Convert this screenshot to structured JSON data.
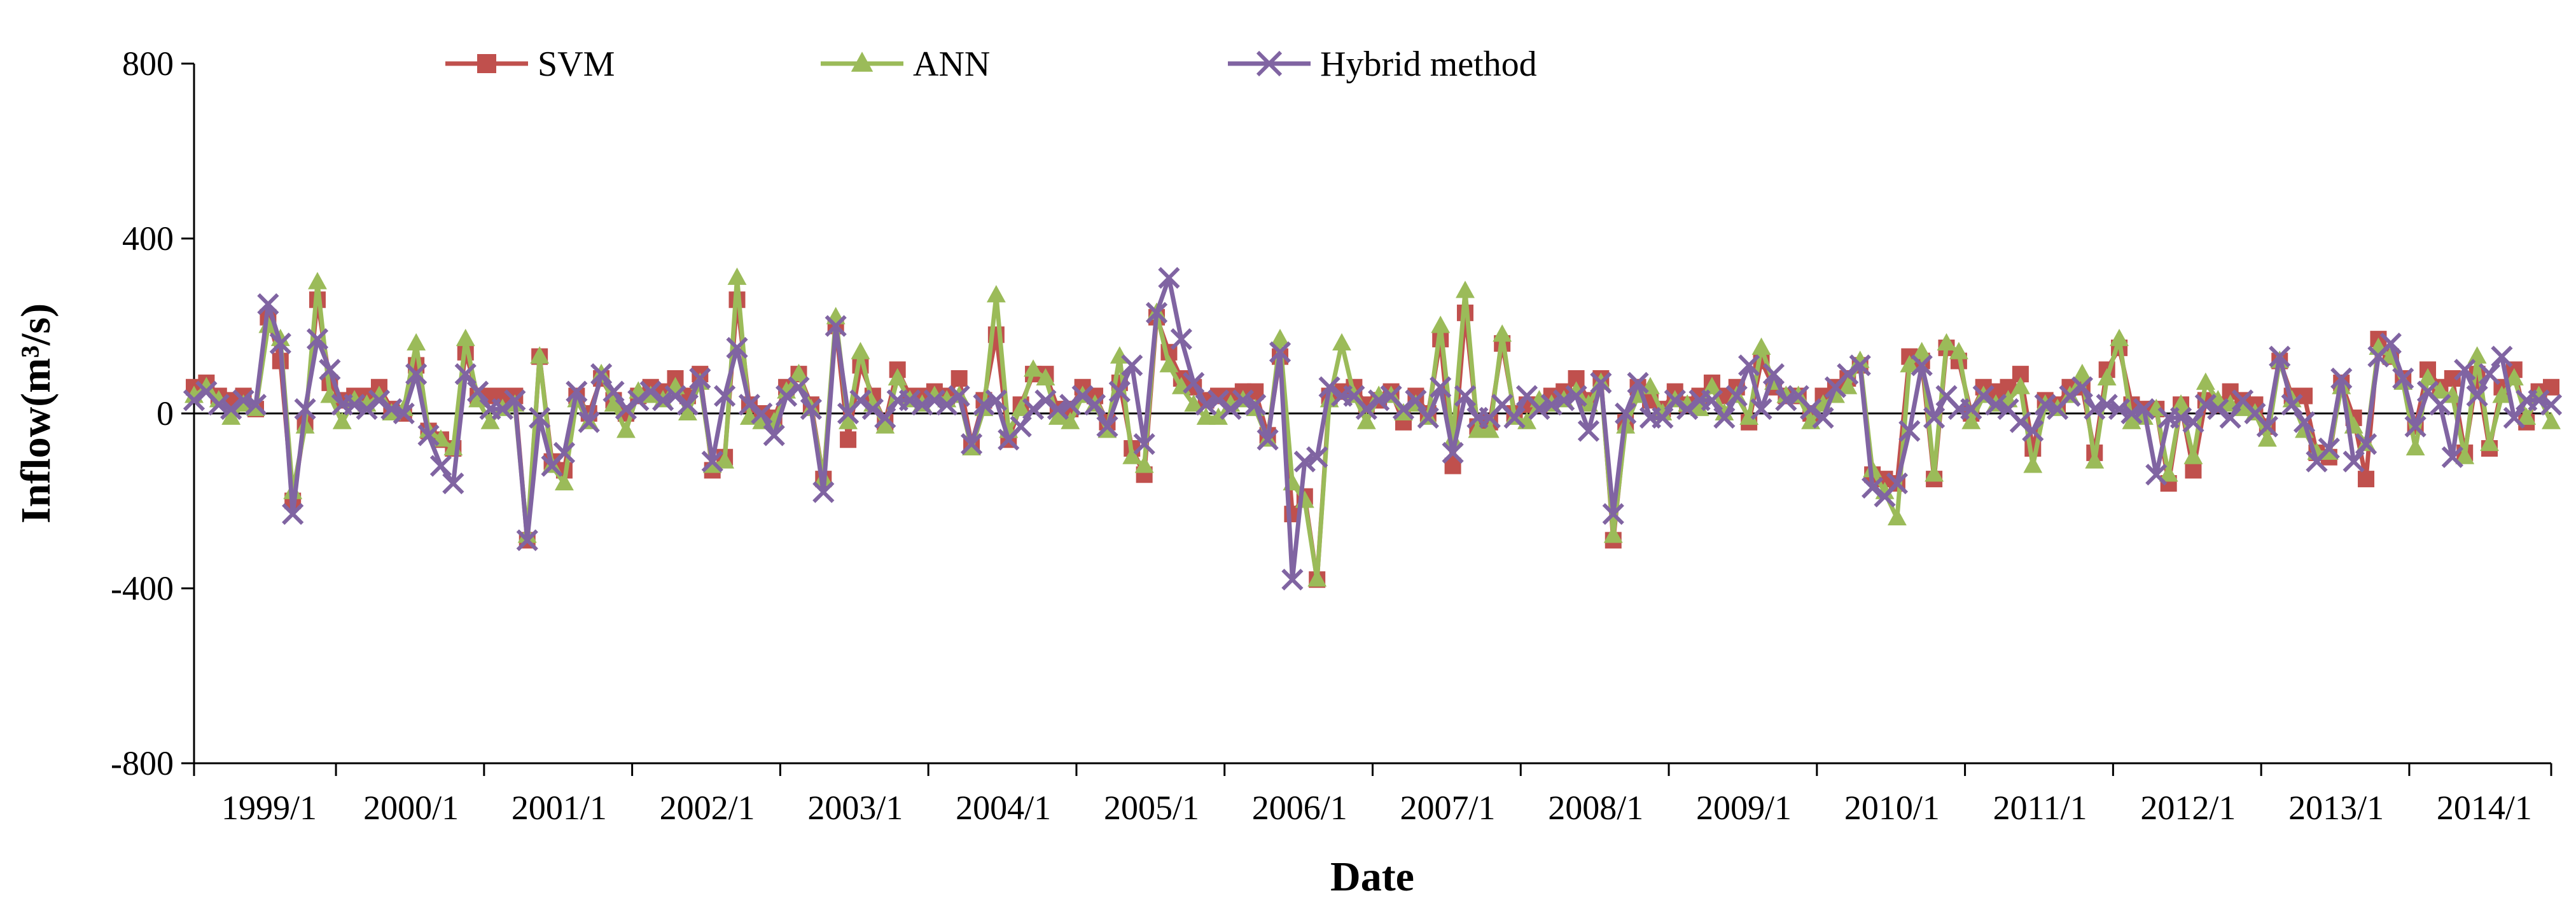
{
  "chart_data": {
    "type": "line",
    "title": "",
    "xlabel": "Date",
    "ylabel": "Inflow(m³/s)",
    "ylim": [
      -800,
      800
    ],
    "yticks": [
      "800",
      "400",
      "0",
      "-400",
      "-800"
    ],
    "xticks": [
      "1999/1",
      "2000/1",
      "2001/1",
      "2002/1",
      "2003/1",
      "2004/1",
      "2005/1",
      "2006/1",
      "2007/1",
      "2008/1",
      "2009/1",
      "2010/1",
      "2011/1",
      "2012/1",
      "2013/1",
      "2014/1"
    ],
    "x_range": [
      "1999/1",
      "2014/12"
    ],
    "grid": false,
    "legend_position": "top-center",
    "x": [
      "1999/1",
      "1999/2",
      "1999/3",
      "1999/4",
      "1999/5",
      "1999/6",
      "1999/7",
      "1999/8",
      "1999/9",
      "1999/10",
      "1999/11",
      "1999/12",
      "2000/1",
      "2000/2",
      "2000/3",
      "2000/4",
      "2000/5",
      "2000/6",
      "2000/7",
      "2000/8",
      "2000/9",
      "2000/10",
      "2000/11",
      "2000/12",
      "2001/1",
      "2001/2",
      "2001/3",
      "2001/4",
      "2001/5",
      "2001/6",
      "2001/7",
      "2001/8",
      "2001/9",
      "2001/10",
      "2001/11",
      "2001/12",
      "2002/1",
      "2002/2",
      "2002/3",
      "2002/4",
      "2002/5",
      "2002/6",
      "2002/7",
      "2002/8",
      "2002/9",
      "2002/10",
      "2002/11",
      "2002/12",
      "2003/1",
      "2003/2",
      "2003/3",
      "2003/4",
      "2003/5",
      "2003/6",
      "2003/7",
      "2003/8",
      "2003/9",
      "2003/10",
      "2003/11",
      "2003/12",
      "2004/1",
      "2004/2",
      "2004/3",
      "2004/4",
      "2004/5",
      "2004/6",
      "2004/7",
      "2004/8",
      "2004/9",
      "2004/10",
      "2004/11",
      "2004/12",
      "2005/1",
      "2005/2",
      "2005/3",
      "2005/4",
      "2005/5",
      "2005/6",
      "2005/7",
      "2005/8",
      "2005/9",
      "2005/10",
      "2005/11",
      "2005/12",
      "2006/1",
      "2006/2",
      "2006/3",
      "2006/4",
      "2006/5",
      "2006/6",
      "2006/7",
      "2006/8",
      "2006/9",
      "2006/10",
      "2006/11",
      "2006/12",
      "2007/1",
      "2007/2",
      "2007/3",
      "2007/4",
      "2007/5",
      "2007/6",
      "2007/7",
      "2007/8",
      "2007/9",
      "2007/10",
      "2007/11",
      "2007/12",
      "2008/1",
      "2008/2",
      "2008/3",
      "2008/4",
      "2008/5",
      "2008/6",
      "2008/7",
      "2008/8",
      "2008/9",
      "2008/10",
      "2008/11",
      "2008/12",
      "2009/1",
      "2009/2",
      "2009/3",
      "2009/4",
      "2009/5",
      "2009/6",
      "2009/7",
      "2009/8",
      "2009/9",
      "2009/10",
      "2009/11",
      "2009/12",
      "2010/1",
      "2010/2",
      "2010/3",
      "2010/4",
      "2010/5",
      "2010/6",
      "2010/7",
      "2010/8",
      "2010/9",
      "2010/10",
      "2010/11",
      "2010/12",
      "2011/1",
      "2011/2",
      "2011/3",
      "2011/4",
      "2011/5",
      "2011/6",
      "2011/7",
      "2011/8",
      "2011/9",
      "2011/10",
      "2011/11",
      "2011/12",
      "2012/1",
      "2012/2",
      "2012/3",
      "2012/4",
      "2012/5",
      "2012/6",
      "2012/7",
      "2012/8",
      "2012/9",
      "2012/10",
      "2012/11",
      "2012/12",
      "2013/1",
      "2013/2",
      "2013/3",
      "2013/4",
      "2013/5",
      "2013/6",
      "2013/7",
      "2013/8",
      "2013/9",
      "2013/10",
      "2013/11",
      "2013/12",
      "2014/1",
      "2014/2",
      "2014/3",
      "2014/4",
      "2014/5",
      "2014/6",
      "2014/7",
      "2014/8",
      "2014/9",
      "2014/10",
      "2014/11",
      "2014/12"
    ],
    "series": [
      {
        "name": "SVM",
        "color": "#c0504d",
        "marker": "square",
        "values": [
          60,
          70,
          40,
          30,
          40,
          10,
          220,
          120,
          -200,
          -20,
          260,
          70,
          30,
          40,
          40,
          60,
          10,
          0,
          110,
          -40,
          -60,
          -80,
          140,
          40,
          40,
          40,
          40,
          -290,
          130,
          -110,
          -130,
          40,
          0,
          80,
          30,
          0,
          40,
          60,
          50,
          80,
          40,
          90,
          -130,
          -100,
          260,
          20,
          0,
          -10,
          60,
          90,
          20,
          -150,
          200,
          -60,
          110,
          40,
          -20,
          100,
          40,
          40,
          50,
          40,
          80,
          -70,
          30,
          180,
          -60,
          20,
          90,
          90,
          10,
          10,
          60,
          40,
          -20,
          70,
          -80,
          -140,
          220,
          140,
          80,
          60,
          30,
          40,
          40,
          50,
          50,
          -50,
          130,
          -230,
          -190,
          -380,
          40,
          50,
          60,
          20,
          30,
          50,
          -20,
          40,
          0,
          170,
          -120,
          230,
          -30,
          -20,
          160,
          0,
          20,
          20,
          40,
          50,
          80,
          30,
          80,
          -290,
          -20,
          60,
          30,
          10,
          50,
          20,
          40,
          70,
          40,
          60,
          -20,
          120,
          60,
          40,
          40,
          0,
          40,
          60,
          80,
          110,
          -140,
          -150,
          -160,
          130,
          120,
          -150,
          150,
          120,
          0,
          60,
          50,
          60,
          90,
          -80,
          30,
          20,
          60,
          60,
          -90,
          100,
          150,
          20,
          10,
          10,
          -160,
          20,
          -130,
          30,
          20,
          50,
          30,
          20,
          -30,
          120,
          40,
          40,
          -90,
          -100,
          70,
          -10,
          -150,
          170,
          130,
          80,
          -30,
          100,
          60,
          80,
          -90,
          90,
          -80,
          60,
          100,
          -20,
          50,
          60
        ]
      },
      {
        "name": "ANN",
        "color": "#9bbb59",
        "marker": "triangle",
        "values": [
          40,
          60,
          30,
          -10,
          20,
          10,
          200,
          170,
          -180,
          -30,
          300,
          40,
          -20,
          30,
          20,
          40,
          0,
          10,
          160,
          -40,
          -60,
          -80,
          170,
          30,
          -20,
          10,
          20,
          -280,
          130,
          -120,
          -160,
          30,
          -20,
          90,
          20,
          -40,
          50,
          40,
          30,
          60,
          0,
          70,
          -120,
          -110,
          310,
          -10,
          -20,
          -20,
          50,
          90,
          10,
          -150,
          220,
          -20,
          140,
          20,
          -30,
          80,
          30,
          20,
          40,
          30,
          40,
          -80,
          10,
          270,
          -40,
          10,
          100,
          80,
          -10,
          -20,
          40,
          20,
          -40,
          130,
          -100,
          -120,
          230,
          110,
          60,
          20,
          -10,
          -10,
          20,
          30,
          10,
          -60,
          170,
          -160,
          -200,
          -380,
          30,
          160,
          40,
          -20,
          40,
          40,
          0,
          20,
          -10,
          200,
          -60,
          280,
          -40,
          -40,
          180,
          -10,
          -20,
          30,
          20,
          30,
          50,
          20,
          70,
          -280,
          -30,
          40,
          60,
          0,
          30,
          20,
          10,
          60,
          0,
          40,
          -10,
          150,
          70,
          40,
          40,
          -20,
          20,
          40,
          60,
          120,
          -130,
          -180,
          -240,
          110,
          140,
          -140,
          160,
          140,
          -20,
          40,
          20,
          30,
          60,
          -120,
          20,
          10,
          40,
          90,
          -110,
          80,
          170,
          -20,
          -10,
          10,
          -140,
          20,
          -100,
          70,
          30,
          20,
          10,
          0,
          -60,
          120,
          30,
          -40,
          -90,
          -90,
          60,
          -30,
          -70,
          150,
          130,
          70,
          -80,
          80,
          50,
          40,
          -100,
          130,
          -70,
          40,
          80,
          -10,
          40,
          -20
        ]
      },
      {
        "name": "Hybrid method",
        "color": "#8064a2",
        "marker": "x",
        "values": [
          30,
          50,
          20,
          10,
          30,
          20,
          250,
          160,
          -230,
          10,
          170,
          100,
          20,
          20,
          10,
          30,
          10,
          0,
          90,
          -50,
          -120,
          -160,
          90,
          50,
          10,
          10,
          30,
          -290,
          -10,
          -120,
          -90,
          50,
          -20,
          90,
          50,
          10,
          30,
          50,
          30,
          40,
          20,
          80,
          -110,
          40,
          150,
          20,
          0,
          -50,
          40,
          60,
          10,
          -180,
          200,
          0,
          30,
          10,
          -10,
          30,
          30,
          20,
          30,
          20,
          40,
          -70,
          20,
          30,
          -60,
          -30,
          10,
          30,
          10,
          20,
          40,
          20,
          -30,
          50,
          110,
          -70,
          230,
          310,
          170,
          70,
          20,
          30,
          10,
          30,
          20,
          -60,
          140,
          -380,
          -110,
          -100,
          60,
          40,
          40,
          10,
          30,
          40,
          10,
          30,
          -10,
          60,
          -90,
          40,
          -10,
          -10,
          20,
          -10,
          40,
          10,
          20,
          30,
          40,
          -40,
          70,
          -230,
          0,
          70,
          -10,
          -10,
          30,
          10,
          30,
          30,
          -10,
          40,
          110,
          10,
          90,
          30,
          40,
          10,
          -10,
          60,
          90,
          110,
          -170,
          -190,
          -160,
          -40,
          110,
          -10,
          40,
          10,
          10,
          40,
          20,
          10,
          -20,
          -40,
          20,
          10,
          40,
          60,
          10,
          20,
          10,
          0,
          10,
          -140,
          -10,
          -10,
          -20,
          20,
          10,
          -10,
          30,
          0,
          -30,
          130,
          20,
          -20,
          -110,
          -80,
          80,
          -110,
          -70,
          130,
          160,
          80,
          -30,
          50,
          20,
          -100,
          100,
          40,
          90,
          130,
          -10,
          30,
          30,
          20
        ]
      }
    ]
  }
}
